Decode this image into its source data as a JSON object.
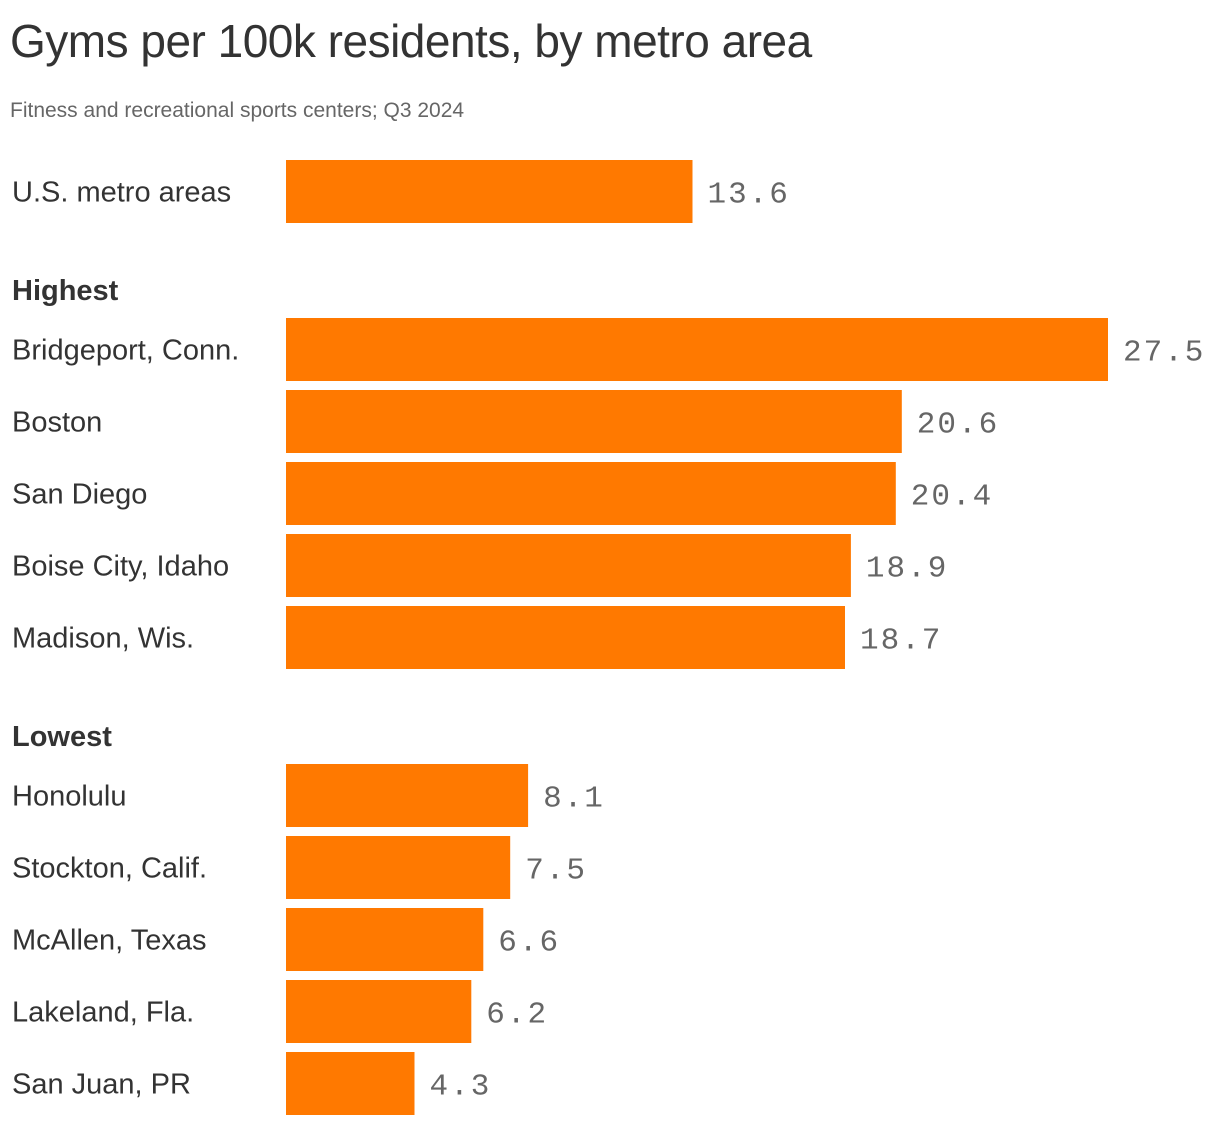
{
  "title": "Gyms per 100k residents, by metro area",
  "subtitle": "Fitness and recreational sports centers; Q3 2024",
  "colors": {
    "bar": "#ff7900",
    "text": "#333333",
    "value_text": "#666666"
  },
  "chart_data": {
    "type": "bar",
    "orientation": "horizontal",
    "title": "Gyms per 100k residents, by metro area",
    "subtitle": "Fitness and recreational sports centers; Q3 2024",
    "xlim": [
      0,
      27.5
    ],
    "grid": false,
    "groups": [
      {
        "label": "",
        "bars": [
          {
            "category": "U.S. metro areas",
            "value": 13.6,
            "value_label": "13.6"
          }
        ]
      },
      {
        "label": "Highest",
        "bars": [
          {
            "category": "Bridgeport, Conn.",
            "value": 27.5,
            "value_label": "27.5"
          },
          {
            "category": "Boston",
            "value": 20.6,
            "value_label": "20.6"
          },
          {
            "category": "San Diego",
            "value": 20.4,
            "value_label": "20.4"
          },
          {
            "category": "Boise City, Idaho",
            "value": 18.9,
            "value_label": "18.9"
          },
          {
            "category": "Madison, Wis.",
            "value": 18.7,
            "value_label": "18.7"
          }
        ]
      },
      {
        "label": "Lowest",
        "bars": [
          {
            "category": "Honolulu",
            "value": 8.1,
            "value_label": "8.1"
          },
          {
            "category": "Stockton, Calif.",
            "value": 7.5,
            "value_label": "7.5"
          },
          {
            "category": "McAllen, Texas",
            "value": 6.6,
            "value_label": "6.6"
          },
          {
            "category": "Lakeland, Fla.",
            "value": 6.2,
            "value_label": "6.2"
          },
          {
            "category": "San Juan, PR",
            "value": 4.3,
            "value_label": "4.3"
          }
        ]
      }
    ]
  }
}
